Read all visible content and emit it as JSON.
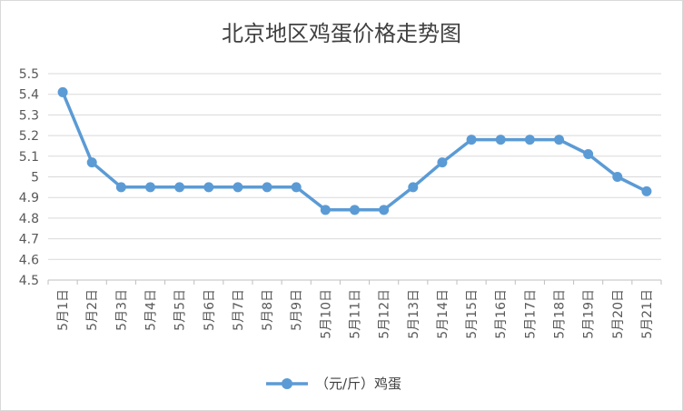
{
  "chart_data": {
    "type": "line",
    "title": "北京地区鸡蛋价格走势图",
    "xlabel": "",
    "ylabel": "",
    "categories": [
      "5月1日",
      "5月2日",
      "5月3日",
      "5月4日",
      "5月5日",
      "5月6日",
      "5月7日",
      "5月8日",
      "5月9日",
      "5月10日",
      "5月11日",
      "5月12日",
      "5月13日",
      "5月14日",
      "5月15日",
      "5月16日",
      "5月17日",
      "5月18日",
      "5月19日",
      "5月20日",
      "5月21日"
    ],
    "series": [
      {
        "name": "（元/斤）鸡蛋",
        "values": [
          5.41,
          5.07,
          4.95,
          4.95,
          4.95,
          4.95,
          4.95,
          4.95,
          4.95,
          4.84,
          4.84,
          4.84,
          4.95,
          5.07,
          5.18,
          5.18,
          5.18,
          5.18,
          5.11,
          5.0,
          4.93
        ]
      }
    ],
    "ylim": [
      4.5,
      5.5
    ],
    "yticks": [
      "4.5",
      "4.6",
      "4.7",
      "4.8",
      "4.9",
      "5",
      "5.1",
      "5.2",
      "5.3",
      "5.4",
      "5.5"
    ],
    "grid": true,
    "legend_position": "bottom",
    "colors": {
      "line": "#5b9bd5",
      "grid": "#d9d9d9",
      "text": "#595959"
    }
  }
}
